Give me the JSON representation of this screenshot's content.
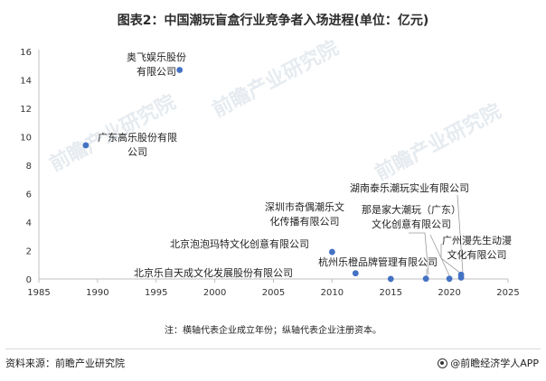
{
  "title": "图表2：中国潮玩盲盒行业竞争者入场进程(单位：亿元)",
  "note": "注：横轴代表企业成立年份；纵轴代表企业注册资本。",
  "source": "资料来源：前瞻产业研究院",
  "brand": "@前瞻经济学人APP",
  "watermark": "前瞻产业研究院",
  "chart_data": {
    "type": "scatter",
    "xlim": [
      1985,
      2025
    ],
    "ylim": [
      0,
      16
    ],
    "xticks": [
      1985,
      1990,
      1995,
      2000,
      2005,
      2010,
      2015,
      2020,
      2025
    ],
    "yticks": [
      0,
      2,
      4,
      6,
      8,
      10,
      12,
      14,
      16
    ],
    "marker_color": "#4472c4",
    "points": [
      {
        "x": 2014.2,
        "y": 0.025,
        "label_lines": []
      },
      {
        "x": 2008.5,
        "y": 1.75,
        "label_lines": []
      },
      {
        "x": 1999.8,
        "y": 2.25,
        "label_lines": []
      },
      {
        "x": 2020.3,
        "y": 5.25,
        "label_lines": []
      },
      {
        "x": 2015.8,
        "y": 6.25,
        "label_lines": []
      },
      {
        "x": 1992.5,
        "y": 8.5,
        "label_lines": []
      },
      {
        "x": 2012.3,
        "y": 0.2,
        "label_lines": []
      },
      {
        "x": 2001.0,
        "y": 13.4,
        "label_lines": []
      },
      {
        "x": 2020.7,
        "y": 3.7,
        "label_lines": []
      },
      {
        "x": 2019.1,
        "y": 3.6,
        "label_lines": []
      },
      {
        "x": 2018.8,
        "y": 1.6,
        "label_lines": []
      },
      {
        "x": 2010.2,
        "y": 5.3,
        "label_lines": []
      },
      {
        "x": 1989,
        "y": 9.4,
        "label_lines": [
          "广东高乐股份有限",
          "公司"
        ]
      },
      {
        "x": 1997,
        "y": 14.7,
        "label_lines": [
          "奥飞娱乐股份",
          "有限公司"
        ]
      },
      {
        "x": 2010,
        "y": 1.9,
        "label_lines": [
          "北京泡泡玛特文化创意有限公司"
        ]
      },
      {
        "x": 2012,
        "y": 0.4,
        "label_lines": [
          "北京乐自天成文化发展股份有限公司"
        ]
      },
      {
        "x": 2015,
        "y": 0.01,
        "label_lines": [
          "杭州乐橙品牌管理有限公司"
        ]
      },
      {
        "x": 2018,
        "y": 0.02,
        "label_lines": [
          "深圳市奇偶潮乐文",
          "化传播有限公司"
        ]
      },
      {
        "x": 2020,
        "y": 0.02,
        "label_lines": [
          "那是家大潮玩（广东）",
          "文化创意有限公司"
        ]
      },
      {
        "x": 2021,
        "y": 0.1,
        "label_lines": [
          "湖南泰乐潮玩实业有限公司"
        ]
      },
      {
        "x": 2021,
        "y": 0.3,
        "label_lines": [
          "广州漫先生动漫",
          "文化有限公司"
        ]
      }
    ]
  }
}
